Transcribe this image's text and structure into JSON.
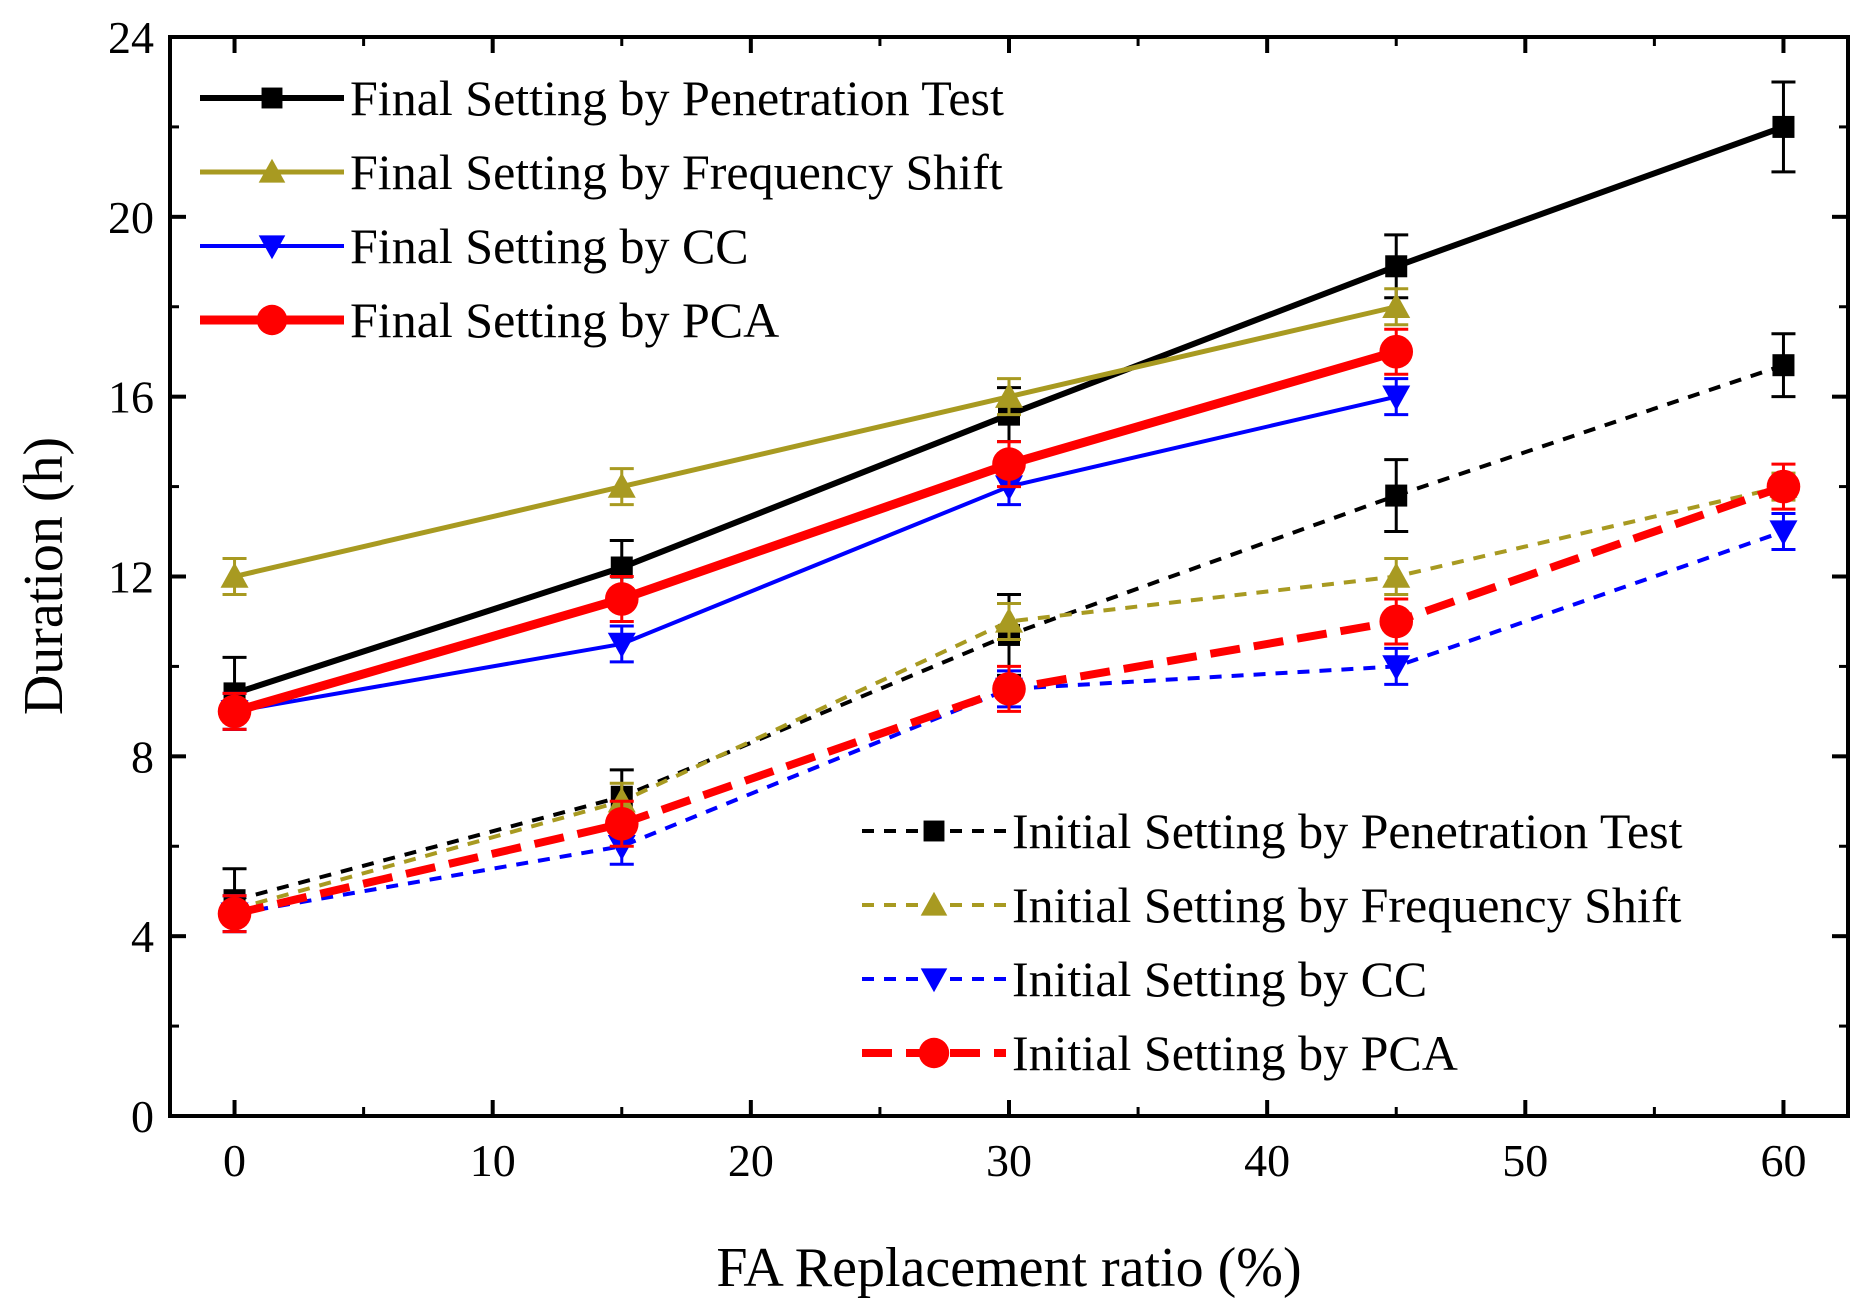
{
  "chart_data": {
    "type": "line",
    "title": "",
    "xlabel": "FA Replacement ratio (%)",
    "ylabel": "Duration (h)",
    "xlim": [
      -2.5,
      62.5
    ],
    "ylim": [
      0,
      24
    ],
    "xticks": [
      0,
      10,
      20,
      30,
      40,
      50,
      60
    ],
    "yticks": [
      0,
      4,
      8,
      12,
      16,
      20,
      24
    ],
    "grid": false,
    "legend_placement": [
      "top-left",
      "bottom-right"
    ],
    "series": [
      {
        "name": "Final Setting by Penetration Test",
        "color": "#000000",
        "marker": "square",
        "dash": "solid",
        "width": 6,
        "x": [
          0,
          15,
          30,
          45,
          60
        ],
        "y": [
          9.4,
          12.2,
          15.6,
          18.9,
          22.0
        ],
        "err": [
          0.8,
          0.6,
          0.6,
          0.7,
          1.0
        ]
      },
      {
        "name": "Final Setting by Frequency Shift",
        "color": "#a89a21",
        "marker": "triangle-up",
        "dash": "solid",
        "width": 5,
        "x": [
          0,
          15,
          30,
          45
        ],
        "y": [
          12.0,
          14.0,
          16.0,
          18.0
        ],
        "err": [
          0.4,
          0.4,
          0.4,
          0.4
        ]
      },
      {
        "name": "Final Setting by CC",
        "color": "#0000ff",
        "marker": "triangle-down",
        "dash": "solid",
        "width": 4,
        "x": [
          0,
          15,
          30,
          45
        ],
        "y": [
          9.0,
          10.5,
          14.0,
          16.0
        ],
        "err": [
          0.4,
          0.4,
          0.4,
          0.4
        ]
      },
      {
        "name": "Final Setting by PCA",
        "color": "#ff0000",
        "marker": "circle",
        "dash": "solid",
        "width": 9,
        "x": [
          0,
          15,
          30,
          45
        ],
        "y": [
          9.0,
          11.5,
          14.5,
          17.0
        ],
        "err": [
          0.4,
          0.5,
          0.5,
          0.5
        ]
      },
      {
        "name": "Initial Setting by Penetration Test",
        "color": "#000000",
        "marker": "square",
        "dash": "short",
        "width": 4,
        "x": [
          0,
          15,
          30,
          45,
          60
        ],
        "y": [
          4.8,
          7.1,
          10.7,
          13.8,
          16.7
        ],
        "err": [
          0.7,
          0.6,
          0.9,
          0.8,
          0.7
        ]
      },
      {
        "name": "Initial Setting by Frequency Shift",
        "color": "#a89a21",
        "marker": "triangle-up",
        "dash": "short",
        "width": 4,
        "x": [
          0,
          15,
          30,
          45,
          60
        ],
        "y": [
          4.6,
          7.0,
          11.0,
          12.0,
          14.0
        ],
        "err": [
          0.3,
          0.4,
          0.4,
          0.4,
          0.3
        ]
      },
      {
        "name": "Initial Setting by CC",
        "color": "#0000ff",
        "marker": "triangle-down",
        "dash": "short",
        "width": 4,
        "x": [
          0,
          15,
          30,
          45,
          60
        ],
        "y": [
          4.5,
          6.0,
          9.5,
          10.0,
          13.0
        ],
        "err": [
          0.4,
          0.4,
          0.4,
          0.4,
          0.4
        ]
      },
      {
        "name": "Initial Setting by PCA",
        "color": "#ff0000",
        "marker": "circle",
        "dash": "long",
        "width": 8,
        "x": [
          0,
          15,
          30,
          45,
          60
        ],
        "y": [
          4.5,
          6.5,
          9.5,
          11.0,
          14.0
        ],
        "err": [
          0.4,
          0.5,
          0.5,
          0.5,
          0.5
        ]
      }
    ]
  }
}
